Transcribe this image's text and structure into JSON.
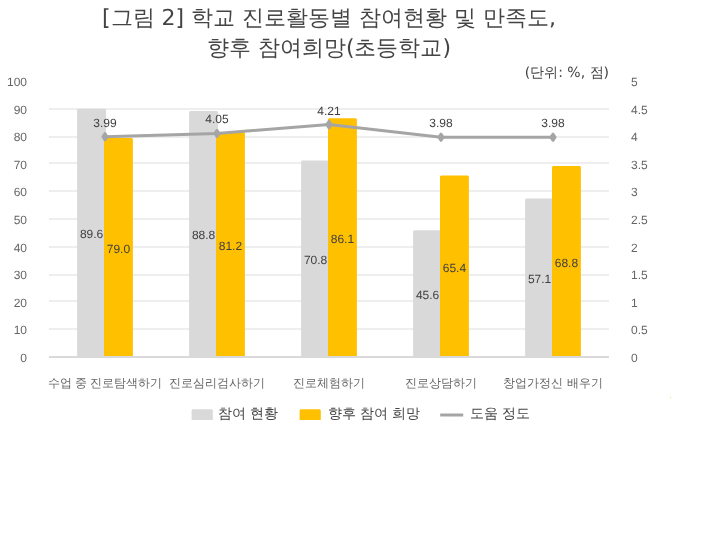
{
  "chart_data": {
    "type": "bar",
    "title": "[그림 2] 학교 진로활동별 참여현황 및 만족도,",
    "subtitle": "향후 참여희망(초등학교)",
    "annotations": [
      "(단위: %, 점)"
    ],
    "categories": [
      "수업 중 진로탐색하기",
      "진로심리검사하기",
      "진로체험하기",
      "진로상담하기",
      "창업가정신 배우기"
    ],
    "series": [
      {
        "name": "참여 현황",
        "color": "#d9d9d9",
        "values": [
          89.6,
          88.8,
          70.8,
          45.6,
          57.1
        ],
        "value_labels": [
          "89.6",
          "88.8",
          "70.8",
          "45.6",
          "57.1"
        ]
      },
      {
        "name": "향후 참여 희망",
        "color": "#ffc000",
        "values": [
          79.0,
          81.2,
          86.1,
          65.4,
          68.8
        ],
        "value_labels": [
          "79.0",
          "81.2",
          "86.1",
          "65.4",
          "68.8"
        ]
      },
      {
        "name": "도움 정도",
        "type": "line",
        "axis": "y2",
        "color": "#a5a5a5",
        "marker": "diamond",
        "values": [
          3.99,
          4.05,
          4.21,
          3.98,
          3.98
        ],
        "value_labels": [
          "3.99",
          "4.05",
          "4.21",
          "3.98",
          "3.98"
        ]
      }
    ],
    "ylim": [
      0,
      100
    ],
    "yticks": [
      0,
      10,
      20,
      30,
      40,
      50,
      60,
      70,
      80,
      90,
      100
    ],
    "y2lim": [
      0,
      5
    ],
    "y2ticks": [
      0,
      0.5,
      1,
      1.5,
      2,
      2.5,
      3,
      3.5,
      4,
      4.5,
      5
    ],
    "grid": "y",
    "legend": "bottom"
  }
}
